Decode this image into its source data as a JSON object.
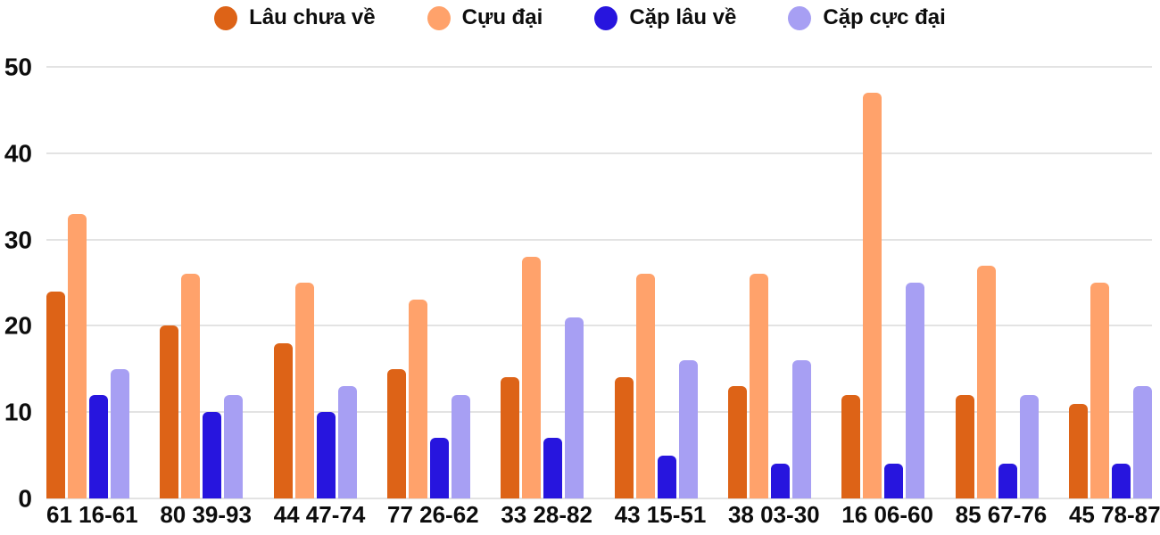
{
  "chart_data": {
    "type": "bar",
    "title": "",
    "categories": [
      "61 16-61",
      "80 39-93",
      "44 47-74",
      "77 26-62",
      "33 28-82",
      "43 15-51",
      "38 03-30",
      "16 06-60",
      "85 67-76",
      "45 78-87"
    ],
    "series": [
      {
        "name": "Lâu chưa về",
        "color": "#DD6317",
        "values": [
          24,
          20,
          18,
          15,
          14,
          14,
          13,
          12,
          12,
          11
        ]
      },
      {
        "name": "Cựu đại",
        "color": "#FFA26B",
        "values": [
          33,
          26,
          25,
          23,
          28,
          26,
          26,
          47,
          27,
          25
        ]
      },
      {
        "name": "Cặp lâu về",
        "color": "#2715DE",
        "values": [
          12,
          10,
          10,
          7,
          7,
          5,
          4,
          4,
          4,
          4
        ]
      },
      {
        "name": "Cặp cực đại",
        "color": "#A79FF3",
        "values": [
          15,
          12,
          13,
          12,
          21,
          16,
          16,
          25,
          12,
          13
        ]
      }
    ],
    "xlabel": "",
    "ylabel": "",
    "ylim": [
      0,
      50
    ],
    "yticks": [
      0,
      10,
      20,
      30,
      40,
      50
    ],
    "grid": true,
    "legend_position": "top",
    "colors": {
      "grid": "#E3E3E3",
      "text": "#0D0D0D",
      "background": "#FFFFFF"
    }
  }
}
